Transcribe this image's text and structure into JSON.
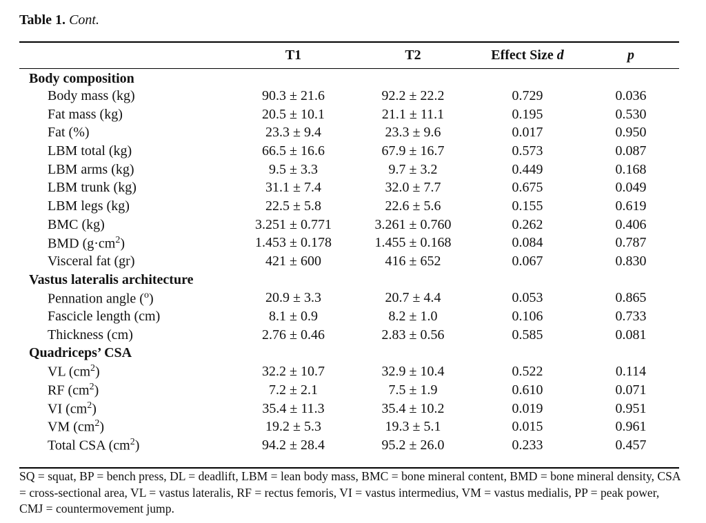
{
  "caption": {
    "number": "Table 1.",
    "text": "Cont."
  },
  "header": {
    "col0": "",
    "t1": "T1",
    "t2": "T2",
    "effect_size": "Effect Size",
    "effect_symbol": "d",
    "p": "p"
  },
  "sections": [
    {
      "title": "Body composition",
      "rows": [
        {
          "label": "Body mass (kg)",
          "t1": "90.3 ± 21.6",
          "t2": "92.2 ± 22.2",
          "d": "0.729",
          "p": "0.036"
        },
        {
          "label": "Fat mass (kg)",
          "t1": "20.5 ± 10.1",
          "t2": "21.1 ± 11.1",
          "d": "0.195",
          "p": "0.530"
        },
        {
          "label": "Fat (%)",
          "t1": "23.3 ± 9.4",
          "t2": "23.3 ± 9.6",
          "d": "0.017",
          "p": "0.950"
        },
        {
          "label": "LBM total (kg)",
          "t1": "66.5 ± 16.6",
          "t2": "67.9 ± 16.7",
          "d": "0.573",
          "p": "0.087"
        },
        {
          "label": "LBM arms (kg)",
          "t1": "9.5 ± 3.3",
          "t2": "9.7 ± 3.2",
          "d": "0.449",
          "p": "0.168"
        },
        {
          "label": "LBM trunk (kg)",
          "t1": "31.1 ± 7.4",
          "t2": "32.0 ± 7.7",
          "d": "0.675",
          "p": "0.049"
        },
        {
          "label": "LBM legs (kg)",
          "t1": "22.5 ± 5.8",
          "t2": "22.6 ± 5.6",
          "d": "0.155",
          "p": "0.619"
        },
        {
          "label": "BMC (kg)",
          "t1": "3.251 ± 0.771",
          "t2": "3.261 ± 0.760",
          "d": "0.262",
          "p": "0.406"
        },
        {
          "label": "BMD (g·cm",
          "sup": "2",
          "suffix": ")",
          "t1": "1.453 ± 0.178",
          "t2": "1.455 ± 0.168",
          "d": "0.084",
          "p": "0.787"
        },
        {
          "label": "Visceral fat (gr)",
          "t1": "421 ± 600",
          "t2": "416 ± 652",
          "d": "0.067",
          "p": "0.830"
        }
      ]
    },
    {
      "title": "Vastus lateralis architecture",
      "rows": [
        {
          "label": "Pennation angle (",
          "sup": "o",
          "suffix": ")",
          "t1": "20.9 ± 3.3",
          "t2": "20.7 ± 4.4",
          "d": "0.053",
          "p": "0.865"
        },
        {
          "label": "Fascicle length (cm)",
          "t1": "8.1 ± 0.9",
          "t2": "8.2 ± 1.0",
          "d": "0.106",
          "p": "0.733"
        },
        {
          "label": "Thickness (cm)",
          "t1": "2.76 ± 0.46",
          "t2": "2.83 ± 0.56",
          "d": "0.585",
          "p": "0.081"
        }
      ]
    },
    {
      "title": "Quadriceps’ CSA",
      "rows": [
        {
          "label": "VL (cm",
          "sup": "2",
          "suffix": ")",
          "t1": "32.2 ± 10.7",
          "t2": "32.9 ± 10.4",
          "d": "0.522",
          "p": "0.114"
        },
        {
          "label": "RF (cm",
          "sup": "2",
          "suffix": ")",
          "t1": "7.2 ± 2.1",
          "t2": "7.5 ± 1.9",
          "d": "0.610",
          "p": "0.071"
        },
        {
          "label": "VI (cm",
          "sup": "2",
          "suffix": ")",
          "t1": "35.4 ± 11.3",
          "t2": "35.4 ± 10.2",
          "d": "0.019",
          "p": "0.951"
        },
        {
          "label": "VM (cm",
          "sup": "2",
          "suffix": ")",
          "t1": "19.2 ± 5.3",
          "t2": "19.3 ± 5.1",
          "d": "0.015",
          "p": "0.961"
        },
        {
          "label": "Total CSA (cm",
          "sup": "2",
          "suffix": ")",
          "t1": "94.2 ± 28.4",
          "t2": "95.2 ± 26.0",
          "d": "0.233",
          "p": "0.457"
        }
      ]
    }
  ],
  "footnote": "SQ = squat, BP = bench press, DL = deadlift, LBM = lean body mass, BMC = bone mineral content, BMD = bone mineral density, CSA = cross-sectional area, VL = vastus lateralis, RF = rectus femoris, VI = vastus intermedius, VM = vastus medialis, PP = peak power, CMJ = countermovement jump."
}
